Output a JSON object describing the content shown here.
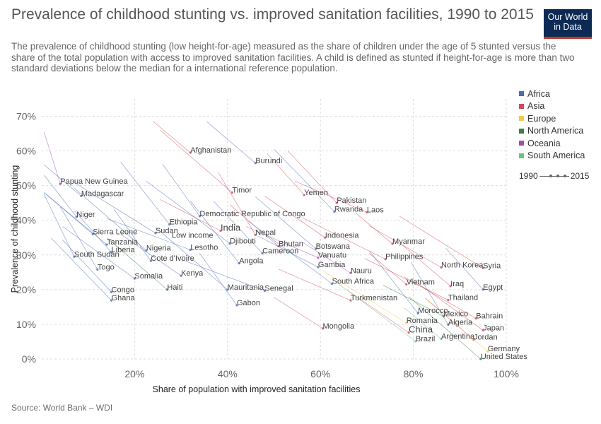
{
  "header": {
    "title": "Prevalence of childhood stunting vs. improved sanitation facilities, 1990 to 2015",
    "subtitle": "The prevalence of childhood stunting (low height-for-age) measured as the share of children under the age of 5 stunted versus the share of the total population with access to improved sanitation facilities. A child is defined as stunted if height-for-age is more than two standard deviations below the median for a international reference population.",
    "logo_line1": "Our World",
    "logo_line2": "in Data"
  },
  "footer": {
    "source": "Source: World Bank – WDI"
  },
  "timeline": {
    "start": "1990",
    "end": "2015"
  },
  "chart_data": {
    "type": "scatter",
    "xlabel": "Share of population with improved sanitation facilities",
    "ylabel": "Prevalence of childhood stunting",
    "xlim": [
      0,
      100
    ],
    "ylim": [
      0,
      75
    ],
    "xticks": [
      "20%",
      "40%",
      "60%",
      "80%",
      "100%"
    ],
    "xtick_values": [
      20,
      40,
      60,
      80,
      100
    ],
    "yticks": [
      "0%",
      "10%",
      "20%",
      "30%",
      "40%",
      "50%",
      "60%",
      "70%"
    ],
    "ytick_values": [
      0,
      10,
      20,
      30,
      40,
      50,
      60,
      70
    ],
    "grid": true,
    "legend_position": "right",
    "series": [
      {
        "name": "Africa",
        "color": "#4c6bb5"
      },
      {
        "name": "Asia",
        "color": "#d1485b"
      },
      {
        "name": "Europe",
        "color": "#f5c847"
      },
      {
        "name": "North America",
        "color": "#3e7d4a"
      },
      {
        "name": "Oceania",
        "color": "#a24bb7"
      },
      {
        "name": "South America",
        "color": "#6cc08b"
      }
    ],
    "labels": [
      {
        "text": "Afghanistan",
        "x": 32,
        "y": 59.5,
        "region": "Asia"
      },
      {
        "text": "Burundi",
        "x": 46,
        "y": 56.5,
        "region": "Africa"
      },
      {
        "text": "Papua New Guinea",
        "x": 4,
        "y": 50.5,
        "region": "Oceania"
      },
      {
        "text": "Timor",
        "x": 41,
        "y": 48,
        "region": "Asia"
      },
      {
        "text": "Madagascar",
        "x": 8.5,
        "y": 47,
        "region": "Africa"
      },
      {
        "text": "Yemen",
        "x": 56.5,
        "y": 47.3,
        "region": "Asia"
      },
      {
        "text": "Pakistan",
        "x": 63.5,
        "y": 45,
        "region": "Asia"
      },
      {
        "text": "Rwanda",
        "x": 63,
        "y": 42.5,
        "region": "Africa"
      },
      {
        "text": "Laos",
        "x": 70,
        "y": 42.3,
        "region": "Asia"
      },
      {
        "text": "Niger",
        "x": 7.5,
        "y": 41,
        "region": "Africa"
      },
      {
        "text": "Democratic Republic of Congo",
        "x": 34,
        "y": 41.2,
        "region": "Africa"
      },
      {
        "text": "Ethiopia",
        "x": 27.5,
        "y": 38.8,
        "region": "Africa"
      },
      {
        "text": "India",
        "x": 38.5,
        "y": 37,
        "region": "Asia"
      },
      {
        "text": "Sierra Leone",
        "x": 11,
        "y": 36,
        "region": "Africa"
      },
      {
        "text": "Sudan",
        "x": 24.5,
        "y": 36.3,
        "region": "Africa"
      },
      {
        "text": "Nepal",
        "x": 46,
        "y": 35.8,
        "region": "Asia"
      },
      {
        "text": "Low income",
        "x": 28,
        "y": 35,
        "region": "Other"
      },
      {
        "text": "Indonesia",
        "x": 61,
        "y": 35,
        "region": "Asia"
      },
      {
        "text": "Tanzania",
        "x": 14,
        "y": 33,
        "region": "Africa"
      },
      {
        "text": "Djibouti",
        "x": 40.5,
        "y": 33.3,
        "region": "Africa"
      },
      {
        "text": "Myanmar",
        "x": 75.5,
        "y": 33.2,
        "region": "Asia"
      },
      {
        "text": "Bhutan",
        "x": 51,
        "y": 32.5,
        "region": "Asia"
      },
      {
        "text": "Botswana",
        "x": 59,
        "y": 31.8,
        "region": "Africa"
      },
      {
        "text": "Nigeria",
        "x": 22.5,
        "y": 31.3,
        "region": "Africa"
      },
      {
        "text": "Lesotho",
        "x": 32,
        "y": 31.5,
        "region": "Africa"
      },
      {
        "text": "Liberia",
        "x": 15,
        "y": 30.8,
        "region": "Africa"
      },
      {
        "text": "Cameroon",
        "x": 47.5,
        "y": 30.5,
        "region": "Africa"
      },
      {
        "text": "South Sudan",
        "x": 7,
        "y": 29.5,
        "region": "Africa"
      },
      {
        "text": "Vanuatu",
        "x": 59.5,
        "y": 29.2,
        "region": "Oceania"
      },
      {
        "text": "Philippines",
        "x": 74,
        "y": 28.8,
        "region": "Asia"
      },
      {
        "text": "Cote d'Ivoire",
        "x": 23.5,
        "y": 28.3,
        "region": "Africa"
      },
      {
        "text": "Angola",
        "x": 42.5,
        "y": 27.6,
        "region": "Africa"
      },
      {
        "text": "Gambia",
        "x": 59.5,
        "y": 26.5,
        "region": "Africa"
      },
      {
        "text": "North Korea",
        "x": 86,
        "y": 26.4,
        "region": "Asia"
      },
      {
        "text": "Syria",
        "x": 95,
        "y": 26.2,
        "region": "Asia"
      },
      {
        "text": "Togo",
        "x": 12,
        "y": 25.8,
        "region": "Africa"
      },
      {
        "text": "Nauru",
        "x": 66.5,
        "y": 24.8,
        "region": "Oceania"
      },
      {
        "text": "Kenya",
        "x": 30,
        "y": 24,
        "region": "Africa"
      },
      {
        "text": "Somalia",
        "x": 20,
        "y": 23.2,
        "region": "Africa"
      },
      {
        "text": "South Africa",
        "x": 62.5,
        "y": 21.7,
        "region": "Africa"
      },
      {
        "text": "Vietnam",
        "x": 78.5,
        "y": 21.5,
        "region": "Asia"
      },
      {
        "text": "Iraq",
        "x": 88,
        "y": 21,
        "region": "Asia"
      },
      {
        "text": "Haiti",
        "x": 27,
        "y": 20,
        "region": "North America"
      },
      {
        "text": "Mauritania",
        "x": 40,
        "y": 20,
        "region": "Africa"
      },
      {
        "text": "Senegal",
        "x": 48,
        "y": 19.7,
        "region": "Africa"
      },
      {
        "text": "Egypt",
        "x": 95,
        "y": 20,
        "region": "Africa"
      },
      {
        "text": "Congo",
        "x": 15,
        "y": 19.3,
        "region": "Africa"
      },
      {
        "text": "Ghana",
        "x": 15,
        "y": 16.9,
        "region": "Africa"
      },
      {
        "text": "Turkmenistan",
        "x": 66.5,
        "y": 16.9,
        "region": "Asia"
      },
      {
        "text": "Thailand",
        "x": 87.5,
        "y": 17,
        "region": "Asia"
      },
      {
        "text": "Gabon",
        "x": 42,
        "y": 15.5,
        "region": "Africa"
      },
      {
        "text": "Morocco",
        "x": 81,
        "y": 13.2,
        "region": "Africa"
      },
      {
        "text": "Mexico",
        "x": 86.5,
        "y": 12.3,
        "region": "North America"
      },
      {
        "text": "Bahrain",
        "x": 93.5,
        "y": 11.7,
        "region": "Asia"
      },
      {
        "text": "Romania",
        "x": 78.5,
        "y": 10.4,
        "region": "Europe"
      },
      {
        "text": "Algeria",
        "x": 87.5,
        "y": 9.9,
        "region": "Africa"
      },
      {
        "text": "Mongolia",
        "x": 60.5,
        "y": 8.8,
        "region": "Asia"
      },
      {
        "text": "China",
        "x": 79,
        "y": 7.6,
        "region": "Asia"
      },
      {
        "text": "Japan",
        "x": 95,
        "y": 8.3,
        "region": "Asia"
      },
      {
        "text": "Brazil",
        "x": 80.5,
        "y": 5.1,
        "region": "South America"
      },
      {
        "text": "Argentina",
        "x": 86,
        "y": 5.8,
        "region": "South America"
      },
      {
        "text": "Jordan",
        "x": 93,
        "y": 5.6,
        "region": "Asia"
      },
      {
        "text": "Germany",
        "x": 96,
        "y": 2.2,
        "region": "Europe"
      },
      {
        "text": "United States",
        "x": 94.5,
        "y": 0,
        "region": "North America"
      }
    ]
  }
}
